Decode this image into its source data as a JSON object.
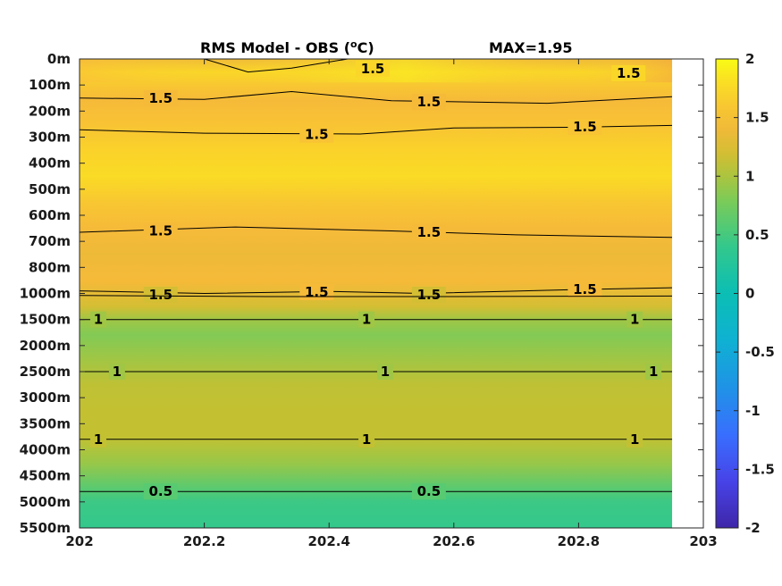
{
  "chart_data": {
    "type": "heatmap",
    "title_left": "RMS Model - OBS (",
    "title_sup": "o",
    "title_unit": "C)",
    "title_right": "MAX=1.95",
    "x_ticks": [
      "202",
      "202.2",
      "202.4",
      "202.6",
      "202.8",
      "203"
    ],
    "x_range": [
      202,
      203
    ],
    "x_data_range": [
      202.0,
      202.95
    ],
    "y_ticks": [
      "0m",
      "100m",
      "200m",
      "300m",
      "400m",
      "500m",
      "600m",
      "700m",
      "800m",
      "1000m",
      "1500m",
      "2000m",
      "2500m",
      "3000m",
      "3500m",
      "4000m",
      "4500m",
      "5000m",
      "5500m"
    ],
    "y_note": "levels are equally spaced in index (non-linear depth axis)",
    "colorbar": {
      "range": [
        -2,
        2
      ],
      "ticks": [
        "2",
        "1.5",
        "1",
        "0.5",
        "0",
        "-0.5",
        "-1",
        "-1.5",
        "-2"
      ]
    },
    "depth_profile": [
      {
        "level": 0,
        "value": 1.4
      },
      {
        "level": 0.5,
        "value": 1.75
      },
      {
        "level": 1,
        "value": 1.6
      },
      {
        "level": 1.6,
        "value": 1.45
      },
      {
        "level": 2.5,
        "value": 1.55
      },
      {
        "level": 3.5,
        "value": 1.72
      },
      {
        "level": 4.5,
        "value": 1.78
      },
      {
        "level": 5.5,
        "value": 1.6
      },
      {
        "level": 6.5,
        "value": 1.45
      },
      {
        "level": 7.5,
        "value": 1.38
      },
      {
        "level": 8.5,
        "value": 1.45
      },
      {
        "level": 9.5,
        "value": 1.2
      },
      {
        "level": 10,
        "value": 0.95
      },
      {
        "level": 10.6,
        "value": 0.82
      },
      {
        "level": 11.5,
        "value": 0.95
      },
      {
        "level": 12.5,
        "value": 1.08
      },
      {
        "level": 13.5,
        "value": 1.1
      },
      {
        "level": 14.5,
        "value": 1.1
      },
      {
        "level": 15.5,
        "value": 0.92
      },
      {
        "level": 16.5,
        "value": 0.6
      },
      {
        "level": 17,
        "value": 0.45
      },
      {
        "level": 18,
        "value": 0.4
      }
    ],
    "contour_lines": [
      {
        "label": "1.5",
        "label_at": [
          [
            202.47,
            0.38
          ],
          [
            202.88,
            0.55
          ]
        ],
        "points": [
          [
            202.2,
            0.0
          ],
          [
            202.27,
            0.5
          ],
          [
            202.34,
            0.35
          ],
          [
            202.43,
            0.0
          ]
        ]
      },
      {
        "label": "1.5",
        "label_at": [
          [
            202.13,
            1.5
          ],
          [
            202.56,
            1.65
          ]
        ],
        "points": [
          [
            202.0,
            1.5
          ],
          [
            202.2,
            1.55
          ],
          [
            202.34,
            1.25
          ],
          [
            202.5,
            1.6
          ],
          [
            202.75,
            1.7
          ],
          [
            202.95,
            1.45
          ]
        ]
      },
      {
        "label": "1.5",
        "label_at": [
          [
            202.38,
            2.9
          ],
          [
            202.81,
            2.6
          ]
        ],
        "points": [
          [
            202.0,
            2.72
          ],
          [
            202.2,
            2.85
          ],
          [
            202.45,
            2.88
          ],
          [
            202.6,
            2.65
          ],
          [
            202.8,
            2.62
          ],
          [
            202.95,
            2.55
          ]
        ]
      },
      {
        "label": "1.5",
        "label_at": [
          [
            202.13,
            6.6
          ],
          [
            202.56,
            6.65
          ]
        ],
        "points": [
          [
            202.0,
            6.65
          ],
          [
            202.25,
            6.45
          ],
          [
            202.5,
            6.6
          ],
          [
            202.7,
            6.75
          ],
          [
            202.95,
            6.85
          ]
        ]
      },
      {
        "label": "1.5",
        "label_at": [
          [
            202.13,
            9.05
          ],
          [
            202.38,
            8.95
          ],
          [
            202.56,
            9.05
          ],
          [
            202.81,
            8.85
          ]
        ],
        "points": [
          [
            202.0,
            8.9
          ],
          [
            202.2,
            9.0
          ],
          [
            202.4,
            8.92
          ],
          [
            202.55,
            9.0
          ],
          [
            202.8,
            8.85
          ],
          [
            202.95,
            8.78
          ]
        ]
      },
      {
        "label": "1.5",
        "label_at": [],
        "points": [
          [
            202.0,
            9.08
          ],
          [
            202.3,
            9.12
          ],
          [
            202.6,
            9.12
          ],
          [
            202.95,
            9.1
          ]
        ]
      },
      {
        "label": "1",
        "label_at": [
          [
            202.03,
            10.0
          ],
          [
            202.46,
            10.0
          ],
          [
            202.89,
            10.0
          ]
        ],
        "points": [
          [
            202.0,
            10.0
          ],
          [
            202.95,
            10.0
          ]
        ]
      },
      {
        "label": "1",
        "label_at": [
          [
            202.06,
            12.0
          ],
          [
            202.49,
            12.0
          ],
          [
            202.92,
            12.0
          ]
        ],
        "points": [
          [
            202.0,
            12.0
          ],
          [
            202.95,
            12.0
          ]
        ]
      },
      {
        "label": "1",
        "label_at": [
          [
            202.03,
            14.6
          ],
          [
            202.46,
            14.6
          ],
          [
            202.89,
            14.6
          ]
        ],
        "points": [
          [
            202.0,
            14.6
          ],
          [
            202.95,
            14.6
          ]
        ]
      },
      {
        "label": "0.5",
        "label_at": [
          [
            202.13,
            16.6
          ],
          [
            202.56,
            16.6
          ]
        ],
        "points": [
          [
            202.0,
            16.6
          ],
          [
            202.95,
            16.6
          ]
        ]
      }
    ]
  }
}
